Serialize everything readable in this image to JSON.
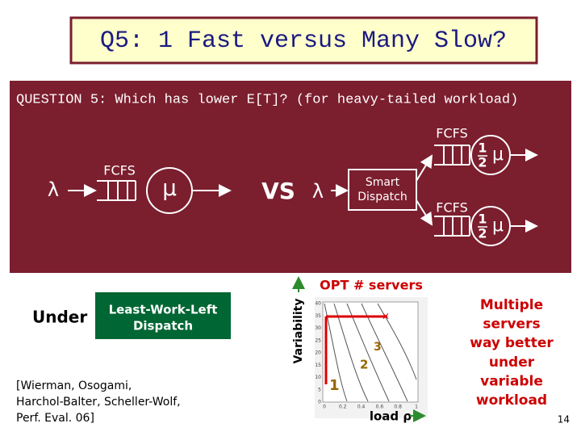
{
  "header": {
    "title": "Q5: 1 Fast versus Many Slow?"
  },
  "question": "QUESTION 5: Which has lower E[T]?  (for heavy-tailed workload)",
  "left_system": {
    "arrival": "λ",
    "queue": "FCFS",
    "server": "μ"
  },
  "versus": "VS",
  "right_system": {
    "arrival": "λ",
    "dispatcher": [
      "Smart",
      "Dispatch"
    ],
    "queues": [
      {
        "label": "FCFS",
        "numerator": "1",
        "denominator": "2",
        "symbol": "μ"
      },
      {
        "label": "FCFS",
        "numerator": "1",
        "denominator": "2",
        "symbol": "μ"
      }
    ]
  },
  "condition": {
    "prefix": "Under",
    "policy": [
      "Least-Work-Left",
      "Dispatch"
    ]
  },
  "citation": [
    "[Wierman, Osogami,",
    "Harchol-Balter, Scheller-Wolf,",
    "Perf. Eval. 06]"
  ],
  "plot": {
    "y_label": "Variability",
    "title": "OPT # servers",
    "y_ticks": [
      "40",
      "35",
      "30",
      "25",
      "20",
      "15",
      "10",
      "5",
      "0"
    ],
    "x_ticks": [
      "0",
      "0.2",
      "0.4",
      "0.6",
      "0.8",
      "1"
    ],
    "region_labels": [
      "3",
      "2",
      "1"
    ],
    "x_label": "load ρ"
  },
  "conclusion": [
    "Multiple",
    "servers",
    "way better",
    "under",
    "variable",
    "workload"
  ],
  "page_number": "14"
}
